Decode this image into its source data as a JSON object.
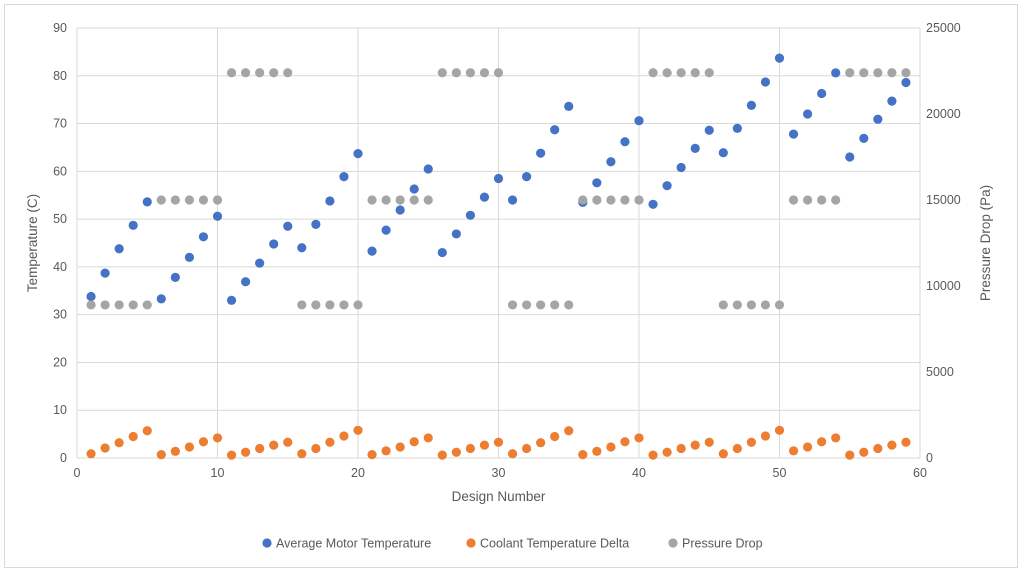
{
  "chart_data": {
    "type": "scatter",
    "title": "",
    "xlabel": "Design Number",
    "ylabel": "Temperature (C)",
    "y2label": "Pressure Drop (Pa)",
    "xlim": [
      0,
      60
    ],
    "ylim": [
      0,
      90
    ],
    "y2lim": [
      0,
      25000
    ],
    "x_ticks": [
      0,
      10,
      20,
      30,
      40,
      50,
      60
    ],
    "y_ticks": [
      0,
      10,
      20,
      30,
      40,
      50,
      60,
      70,
      80,
      90
    ],
    "y2_ticks": [
      0,
      5000,
      10000,
      15000,
      20000,
      25000
    ],
    "grid": true,
    "legend_position": "bottom",
    "series": [
      {
        "name": "Average Motor Temperature",
        "axis": "left",
        "color": "#4472C4",
        "x": [
          1,
          2,
          3,
          4,
          5,
          6,
          7,
          8,
          9,
          10,
          11,
          12,
          13,
          14,
          15,
          16,
          17,
          18,
          19,
          20,
          21,
          22,
          23,
          24,
          25,
          26,
          27,
          28,
          29,
          30,
          31,
          32,
          33,
          34,
          35,
          36,
          37,
          38,
          39,
          40,
          41,
          42,
          43,
          44,
          45,
          46,
          47,
          48,
          49,
          50,
          51,
          52,
          53,
          54,
          55,
          56,
          57,
          58,
          59
        ],
        "y": [
          33.8,
          38.7,
          43.8,
          48.7,
          53.6,
          33.3,
          37.8,
          42.0,
          46.3,
          50.6,
          33.0,
          36.9,
          40.8,
          44.8,
          48.5,
          44.0,
          48.9,
          53.8,
          58.9,
          63.7,
          43.3,
          47.7,
          51.9,
          56.3,
          60.5,
          43.0,
          46.9,
          50.8,
          54.6,
          58.5,
          54.0,
          58.9,
          63.8,
          68.7,
          73.6,
          53.5,
          57.6,
          62.0,
          66.2,
          70.6,
          53.1,
          57.0,
          60.8,
          64.8,
          68.6,
          63.9,
          69.0,
          73.8,
          78.7,
          83.7,
          67.8,
          72.0,
          76.3,
          80.6,
          63.0,
          66.9,
          70.9,
          74.7,
          78.6
        ]
      },
      {
        "name": "Coolant Temperature Delta",
        "axis": "left",
        "color": "#ED7D31",
        "x": [
          1,
          2,
          3,
          4,
          5,
          6,
          7,
          8,
          9,
          10,
          11,
          12,
          13,
          14,
          15,
          16,
          17,
          18,
          19,
          20,
          21,
          22,
          23,
          24,
          25,
          26,
          27,
          28,
          29,
          30,
          31,
          32,
          33,
          34,
          35,
          36,
          37,
          38,
          39,
          40,
          41,
          42,
          43,
          44,
          45,
          46,
          47,
          48,
          49,
          50,
          51,
          52,
          53,
          54,
          55,
          56,
          57,
          58,
          59
        ],
        "y": [
          0.9,
          2.1,
          3.2,
          4.5,
          5.7,
          0.7,
          1.4,
          2.3,
          3.4,
          4.2,
          0.6,
          1.2,
          2.0,
          2.7,
          3.3,
          0.9,
          2.0,
          3.3,
          4.6,
          5.8,
          0.7,
          1.5,
          2.3,
          3.4,
          4.2,
          0.6,
          1.2,
          2.0,
          2.7,
          3.3,
          0.9,
          2.0,
          3.2,
          4.5,
          5.7,
          0.7,
          1.4,
          2.3,
          3.4,
          4.2,
          0.6,
          1.2,
          2.0,
          2.7,
          3.3,
          0.9,
          2.0,
          3.3,
          4.6,
          5.8,
          1.5,
          2.3,
          3.4,
          4.2,
          0.6,
          1.2,
          2.0,
          2.7,
          3.3
        ]
      },
      {
        "name": "Pressure Drop",
        "axis": "right",
        "color": "#A5A5A5",
        "x": [
          1,
          2,
          3,
          4,
          5,
          6,
          7,
          8,
          9,
          10,
          11,
          12,
          13,
          14,
          15,
          16,
          17,
          18,
          19,
          20,
          21,
          22,
          23,
          24,
          25,
          26,
          27,
          28,
          29,
          30,
          31,
          32,
          33,
          34,
          35,
          36,
          37,
          38,
          39,
          40,
          41,
          42,
          43,
          44,
          45,
          46,
          47,
          48,
          49,
          50,
          51,
          52,
          53,
          54,
          55,
          56,
          57,
          58,
          59
        ],
        "y": [
          8900,
          8900,
          8900,
          8900,
          8900,
          15000,
          15000,
          15000,
          15000,
          15000,
          22400,
          22400,
          22400,
          22400,
          22400,
          8900,
          8900,
          8900,
          8900,
          8900,
          15000,
          15000,
          15000,
          15000,
          15000,
          22400,
          22400,
          22400,
          22400,
          22400,
          8900,
          8900,
          8900,
          8900,
          8900,
          15000,
          15000,
          15000,
          15000,
          15000,
          22400,
          22400,
          22400,
          22400,
          22400,
          8900,
          8900,
          8900,
          8900,
          8900,
          15000,
          15000,
          15000,
          15000,
          22400,
          22400,
          22400,
          22400,
          22400
        ]
      }
    ]
  }
}
